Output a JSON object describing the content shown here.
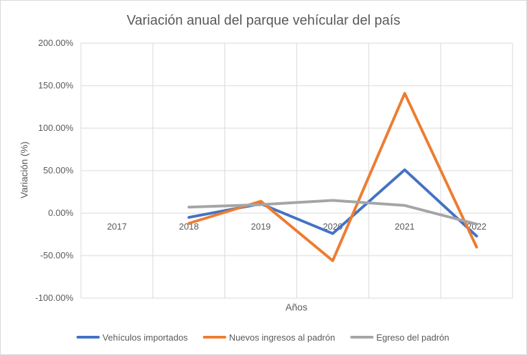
{
  "chart_data": {
    "type": "line",
    "title": "Variación anual del parque vehícular del país",
    "xlabel": "Años",
    "ylabel": "Variación (%)",
    "categories": [
      "2017",
      "2018",
      "2019",
      "2020",
      "2021",
      "2022"
    ],
    "y_tick_labels": [
      "200.00%",
      "150.00%",
      "100.00%",
      "50.00%",
      "0.00%",
      "-50.00%",
      "-100.00%"
    ],
    "ylim": [
      -100,
      200
    ],
    "y_unit": "%",
    "grid": true,
    "legend_position": "bottom",
    "series": [
      {
        "name": "Vehículos importados",
        "color": "#4472c4",
        "values": [
          null,
          -5,
          11,
          -24,
          51,
          -27
        ]
      },
      {
        "name": "Nuevos ingresos al padrón",
        "color": "#ed7d31",
        "values": [
          null,
          -12,
          14,
          -56,
          141,
          -40
        ]
      },
      {
        "name": "Egreso del padrón",
        "color": "#a5a5a5",
        "values": [
          null,
          7,
          10,
          15,
          9,
          -13
        ]
      }
    ]
  }
}
